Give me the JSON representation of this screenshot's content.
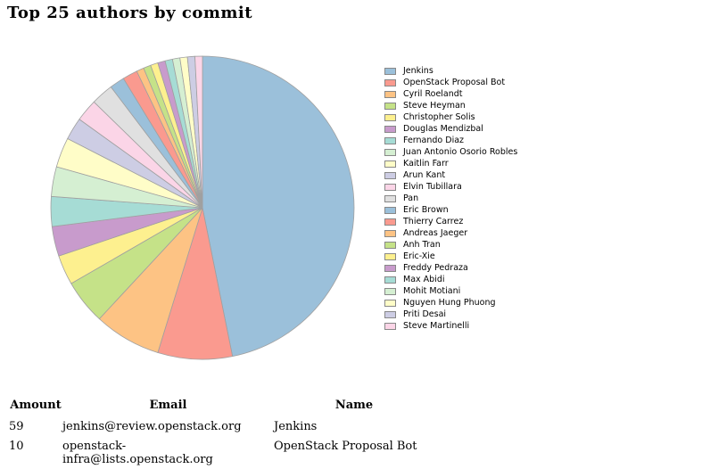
{
  "title": "Top 25 authors by commit",
  "chart_data": {
    "type": "pie",
    "title": "Top 25 authors by commit",
    "legend_placement": "right",
    "labels": [
      "Jenkins",
      "OpenStack Proposal Bot",
      "Cyril Roelandt",
      "Steve Heyman",
      "Christopher Solis",
      "Douglas Mendizbal",
      "Fernando Diaz",
      "Juan Antonio Osorio Robles",
      "Kaitlin Farr",
      "Arun Kant",
      "Elvin Tubillara",
      "Pan",
      "Eric Brown",
      "Thierry Carrez",
      "Andreas Jaeger",
      "Anh Tran",
      "Eric-Xie",
      "Freddy Pedraza",
      "Max Abidi",
      "Mohit Motiani",
      "Nguyen Hung Phuong",
      "Priti Desai",
      "Steve Martinelli"
    ],
    "values": [
      59,
      10,
      9,
      6,
      4,
      4,
      4,
      4,
      4,
      3,
      3,
      3,
      2,
      2,
      1,
      1,
      1,
      1,
      1,
      1,
      1,
      1,
      1
    ],
    "colors": [
      "#9bc0da",
      "#fa9a8f",
      "#fdc384",
      "#c5e288",
      "#fdf08f",
      "#c89bcc",
      "#a6dcd5",
      "#d5efd2",
      "#fffdc8",
      "#cdcde4",
      "#fbd5e7",
      "#e0e0e0",
      "#9bc0da",
      "#fa9a8f",
      "#fdc384",
      "#c5e288",
      "#fdf08f",
      "#c89bcc",
      "#a6dcd5",
      "#d5efd2",
      "#fffdc8",
      "#cdcde4",
      "#fbd5e7"
    ]
  },
  "table": {
    "headers": {
      "amount": "Amount",
      "email": "Email",
      "name": "Name"
    },
    "rows": [
      {
        "amount": "59",
        "email": "jenkins@review.openstack.org",
        "name": "Jenkins"
      },
      {
        "amount": "10",
        "email": "openstack-infra@lists.openstack.org",
        "name": "OpenStack Proposal Bot"
      }
    ]
  }
}
